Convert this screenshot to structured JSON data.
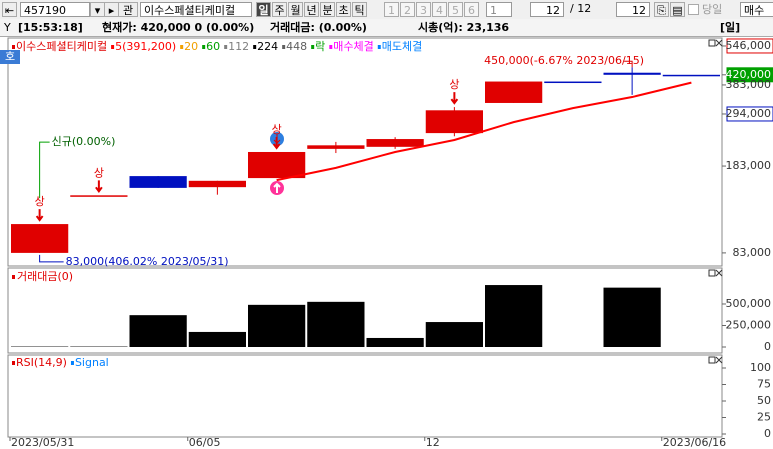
{
  "toolbar": {
    "code": "457190",
    "search": "관",
    "name": "이수스페셜티케미컬",
    "periods": [
      "일",
      "주",
      "월",
      "년",
      "분",
      "초",
      "틱"
    ],
    "slots": [
      "1",
      "2",
      "3",
      "4",
      "5",
      "6"
    ],
    "unit": "1",
    "count": "12",
    "total": "/ 12",
    "shown": "12",
    "today": "당일",
    "order": "매수"
  },
  "status": {
    "flag": "Y",
    "time": "[15:53:18]",
    "price": "현재가: 420,000 0 (0.00%)",
    "amount": "거래대금:  (0.00%)",
    "cap": "시총(억): 23,136",
    "mode": "[일]"
  },
  "chart_data": [
    {
      "type": "candlestick",
      "log": true,
      "categories": [
        "2023/05/31",
        null,
        null,
        "06/05",
        null,
        null,
        null,
        "12",
        null,
        null,
        null,
        "2023/06/16"
      ],
      "open": [
        83000,
        140200,
        167000,
        151000,
        164000,
        214000,
        218000,
        247000,
        325000,
        395000,
        428000,
        420000
      ],
      "high": [
        107900,
        140200,
        167000,
        160000,
        208000,
        228000,
        238000,
        313000,
        395000,
        395000,
        450000,
        420000
      ],
      "low": [
        83000,
        140200,
        150000,
        141000,
        164000,
        206000,
        214000,
        240000,
        325000,
        395000,
        350000,
        420000
      ],
      "close": [
        107900,
        140200,
        150000,
        160000,
        208000,
        221000,
        234000,
        304000,
        395000,
        395000,
        420000,
        420000
      ],
      "colors": [
        "#e00000",
        "#e00000",
        "#0010c0",
        "#e00000",
        "#e00000",
        "#e00000",
        "#e00000",
        "#e00000",
        "#e00000",
        "#0010c0",
        "#0010c0",
        "#0010c0"
      ],
      "series": [
        {
          "name": "5(391,200)",
          "color": "#ff0000",
          "values": [
            null,
            null,
            null,
            null,
            161000,
            180000,
            208000,
            232000,
            273000,
            310000,
            343000,
            391200
          ]
        }
      ],
      "legend": [
        {
          "name": "이수스페셜티케미컬",
          "color": "#e00000"
        },
        {
          "name": "20",
          "color": "#f0a000"
        },
        {
          "name": "60",
          "color": "#00a000"
        },
        {
          "name": "112",
          "color": "#808080"
        },
        {
          "name": "224",
          "color": "#000000"
        },
        {
          "name": "448",
          "color": "#606060"
        },
        {
          "name": "락",
          "color": "#00a000"
        },
        {
          "name": "매수체결",
          "color": "#ff00ff"
        },
        {
          "name": "매도체결",
          "color": "#0080ff"
        }
      ],
      "ylim": [
        76400,
        561000
      ],
      "yticks": [
        {
          "value": 546000,
          "label": "546,000",
          "box": "#e00000"
        },
        {
          "value": 420000,
          "label": "420,000",
          "box": "#00a000"
        },
        {
          "value": 383000,
          "label": "383,000"
        },
        {
          "value": 294000,
          "label": "294,000",
          "box": "#0010c0"
        },
        {
          "value": 183000,
          "label": "183,000"
        },
        {
          "value": 83000,
          "label": "83,000"
        }
      ],
      "limit_up": {
        "text": "상",
        "indices": [
          0,
          1,
          4,
          7
        ]
      },
      "new_listing": {
        "text": "신규(0.00%)",
        "index": 0
      },
      "low_label": {
        "text": "83,000(406.02% 2023/05/31)",
        "index": 0
      },
      "high_label": {
        "text": "450,000(-6.67% 2023/06/15)",
        "index": 10
      }
    },
    {
      "type": "bar",
      "title": "거래대금(0)",
      "color": "#000000",
      "values": [
        5000,
        5000,
        370000,
        175000,
        490000,
        525000,
        105000,
        290000,
        720000,
        0,
        690000,
        0
      ],
      "ylim": [
        0,
        895000
      ],
      "yticks": [
        {
          "value": 500000,
          "label": "500,000"
        },
        {
          "value": 250000,
          "label": "250,000"
        },
        0
      ]
    },
    {
      "type": "line",
      "series": [
        {
          "name": "RSI(14,9)",
          "color": "#e00000",
          "values": [
            null,
            null,
            null,
            null,
            null,
            null,
            null,
            null,
            null,
            null,
            null,
            null
          ]
        },
        {
          "name": "Signal",
          "color": "#0080ff",
          "values": [
            null,
            null,
            null,
            null,
            null,
            null,
            null,
            null,
            null,
            null,
            null,
            null
          ]
        }
      ],
      "ylim": [
        0,
        100
      ],
      "yticks": [
        100,
        75,
        50,
        25,
        0
      ]
    }
  ]
}
